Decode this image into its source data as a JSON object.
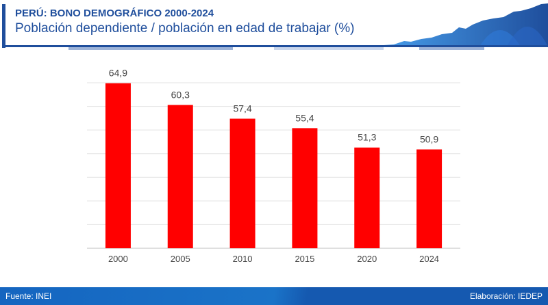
{
  "header": {
    "title": "PERÚ: BONO DEMOGRÁFICO 2000-2024",
    "subtitle": "Población dependiente / población en edad de trabajar (%)"
  },
  "chart_data": {
    "type": "bar",
    "title": "Población dependiente / población en edad de trabajar (%)",
    "categories": [
      "2000",
      "2005",
      "2010",
      "2015",
      "2020",
      "2024"
    ],
    "values": [
      64.9,
      60.3,
      57.4,
      55.4,
      51.3,
      50.9
    ],
    "labels": [
      "64,9",
      "60,3",
      "57,4",
      "55,4",
      "51,3",
      "50,9"
    ],
    "ylim": [
      30,
      65
    ],
    "grid": true,
    "bar_color": "#ff0000",
    "xlabel": "",
    "ylabel": ""
  },
  "footer": {
    "source": "Fuente: INEI",
    "credit": "Elaboración: IEDEP"
  }
}
